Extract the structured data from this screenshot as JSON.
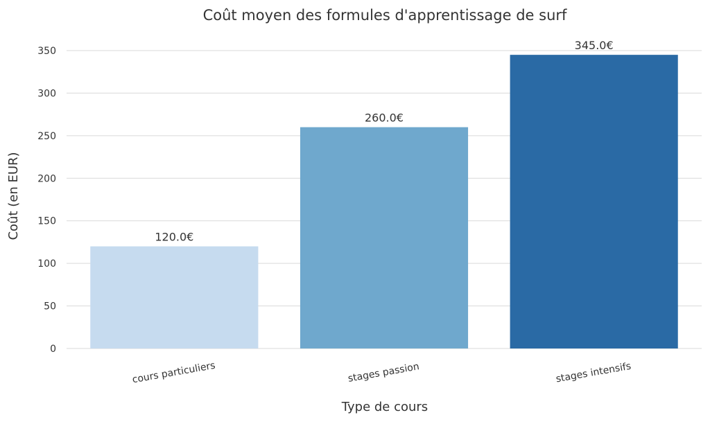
{
  "chart_data": {
    "type": "bar",
    "title": "Coût moyen des formules d'apprentissage de surf",
    "xlabel": "Type de cours",
    "ylabel": "Coût (en EUR)",
    "categories": [
      "cours particuliers",
      "stages passion",
      "stages intensifs"
    ],
    "values": [
      120.0,
      260.0,
      345.0
    ],
    "data_labels": [
      "120.0€",
      "260.0€",
      "345.0€"
    ],
    "colors": [
      "#c6dbef",
      "#6fa8cd",
      "#2a6aa5"
    ],
    "ylim": [
      0,
      360
    ],
    "yticks": [
      0,
      50,
      100,
      150,
      200,
      250,
      300,
      350
    ],
    "grid": true,
    "legend": "none"
  }
}
